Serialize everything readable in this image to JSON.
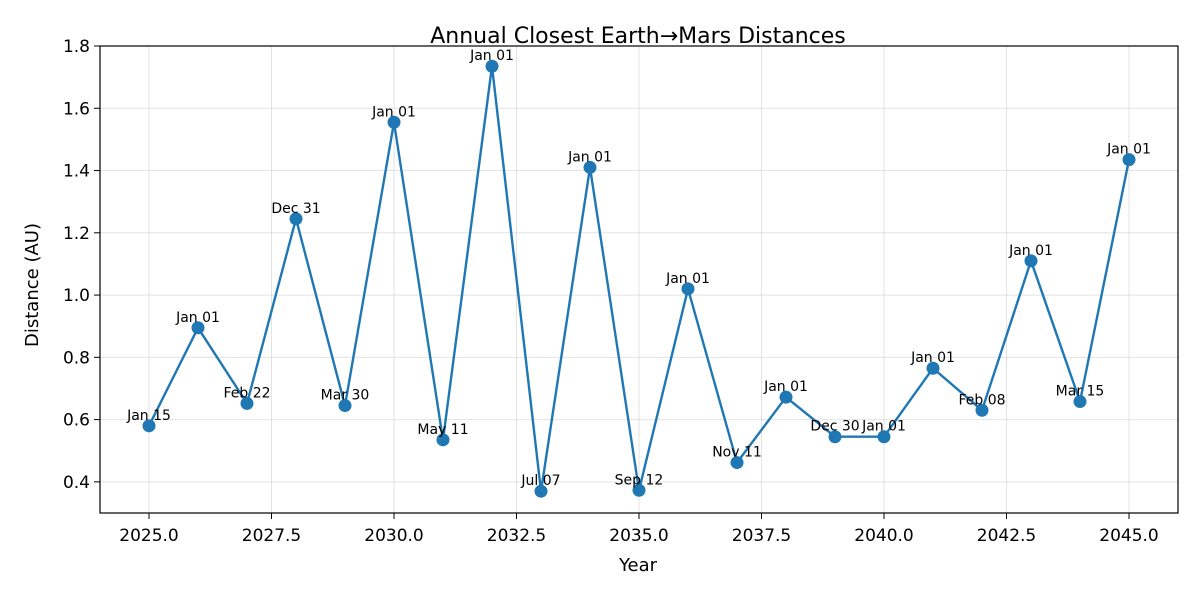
{
  "chart_data": {
    "type": "line",
    "title": "Annual Closest Earth→Mars Distances",
    "xlabel": "Year",
    "ylabel": "Distance (AU)",
    "xlim": [
      2024,
      2046.0
    ],
    "ylim": [
      0.3,
      1.8
    ],
    "xticks": [
      2025.0,
      2027.5,
      2030.0,
      2032.5,
      2035.0,
      2037.5,
      2040.0,
      2042.5,
      2045.0
    ],
    "xtick_labels": [
      "2025.0",
      "2027.5",
      "2030.0",
      "2032.5",
      "2035.0",
      "2037.5",
      "2040.0",
      "2042.5",
      "2045.0"
    ],
    "yticks": [
      0.4,
      0.6,
      0.8,
      1.0,
      1.2,
      1.4,
      1.6,
      1.8
    ],
    "ytick_labels": [
      "0.4",
      "0.6",
      "0.8",
      "1.0",
      "1.2",
      "1.4",
      "1.6",
      "1.8"
    ],
    "grid": true,
    "color": "#1f77b4",
    "series": [
      {
        "x": [
          2025,
          2026,
          2027,
          2028,
          2029,
          2030,
          2031,
          2032,
          2033,
          2034,
          2035,
          2036,
          2037,
          2038,
          2039,
          2040,
          2041,
          2042,
          2043,
          2044,
          2045
        ],
        "values": [
          0.58,
          0.895,
          0.652,
          1.245,
          0.645,
          1.555,
          0.535,
          1.735,
          0.37,
          1.41,
          0.373,
          1.02,
          0.462,
          0.672,
          0.545,
          0.545,
          0.765,
          0.63,
          1.11,
          0.658,
          1.435
        ],
        "labels": [
          "Jan 15",
          "Jan 01",
          "Feb 22",
          "Dec 31",
          "Mar 30",
          "Jan 01",
          "May 11",
          "Jan 01",
          "Jul 07",
          "Jan 01",
          "Sep 12",
          "Jan 01",
          "Nov 11",
          "Jan 01",
          "Dec 30",
          "Jan 01",
          "Jan 01",
          "Feb 08",
          "Jan 01",
          "Mar 15",
          "Jan 01"
        ]
      }
    ]
  }
}
